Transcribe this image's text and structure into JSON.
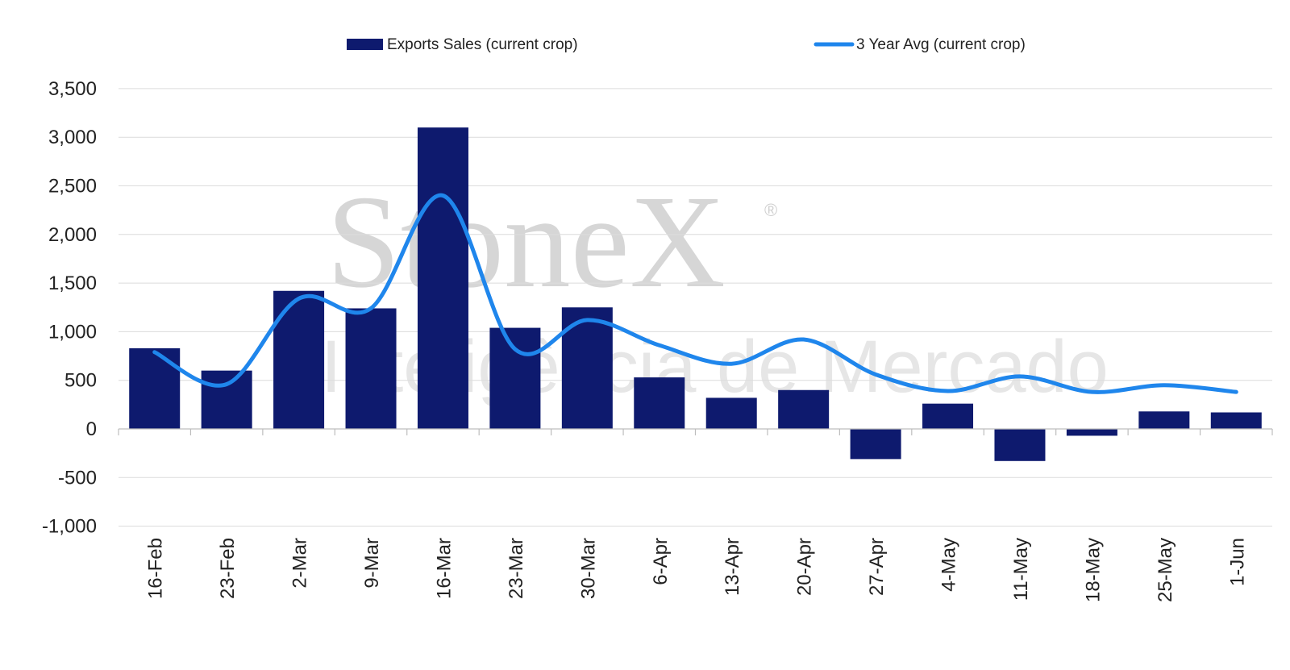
{
  "watermark": {
    "brand": "StoneX",
    "registered": "®",
    "tagline": "Inteligência de Mercado"
  },
  "chart_data": {
    "type": "bar",
    "title": "",
    "xlabel": "",
    "ylabel": "",
    "ylim": [
      -1000,
      3500
    ],
    "yticks": [
      -1000,
      -500,
      0,
      500,
      1000,
      1500,
      2000,
      2500,
      3000,
      3500
    ],
    "ytick_labels": [
      "-1,000",
      "-500",
      "0",
      "500",
      "1,000",
      "1,500",
      "2,000",
      "2,500",
      "3,000",
      "3,500"
    ],
    "grid": true,
    "legend": "top-center",
    "categories": [
      "16-Feb",
      "23-Feb",
      "2-Mar",
      "9-Mar",
      "16-Mar",
      "23-Mar",
      "30-Mar",
      "6-Apr",
      "13-Apr",
      "20-Apr",
      "27-Apr",
      "4-May",
      "11-May",
      "18-May",
      "25-May",
      "1-Jun"
    ],
    "series": [
      {
        "name": "Exports Sales (current crop)",
        "type": "bar",
        "color": "#0e1a6e",
        "values": [
          830,
          600,
          1420,
          1240,
          3100,
          1040,
          1250,
          530,
          320,
          400,
          -310,
          260,
          -330,
          -70,
          180,
          170
        ]
      },
      {
        "name": "3 Year Avg (current crop)",
        "type": "line",
        "color": "#1f86ec",
        "values": [
          790,
          460,
          1340,
          1240,
          2400,
          820,
          1120,
          860,
          670,
          920,
          560,
          390,
          540,
          380,
          450,
          380
        ]
      }
    ]
  }
}
